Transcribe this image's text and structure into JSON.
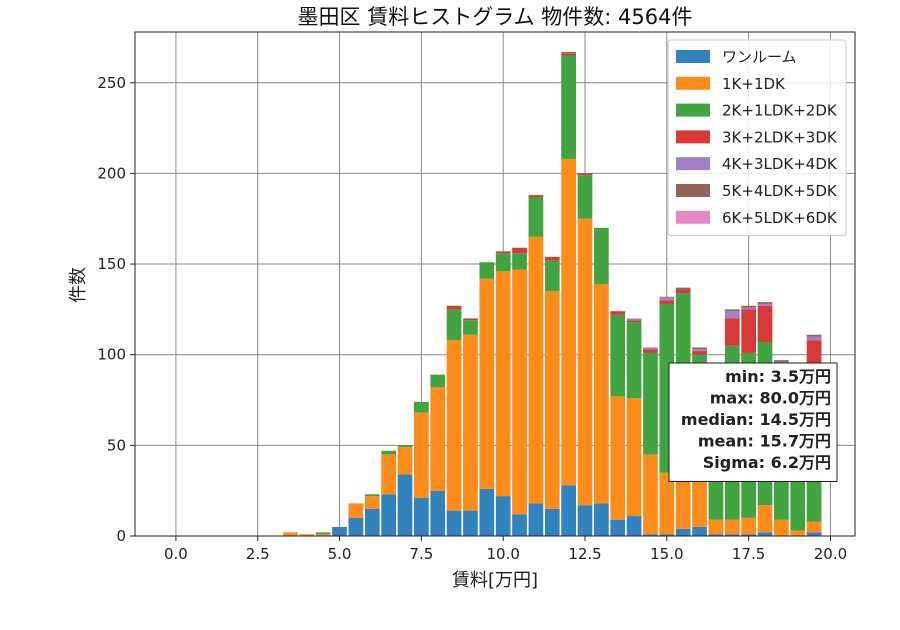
{
  "chart_data": {
    "type": "bar",
    "stacked": true,
    "title": "墨田区 賃料ヒストグラム 物件数: 4564件",
    "xlabel": "賃料[万円]",
    "ylabel": "件数",
    "xlim": [
      -1.25,
      20.75
    ],
    "ylim": [
      0,
      278
    ],
    "xticks": [
      0,
      2.5,
      5,
      7.5,
      10,
      12.5,
      15,
      17.5,
      20
    ],
    "xtick_labels": [
      "0.0",
      "2.5",
      "5.0",
      "7.5",
      "10.0",
      "12.5",
      "15.0",
      "17.5",
      "20.0"
    ],
    "yticks": [
      0,
      50,
      100,
      150,
      200,
      250
    ],
    "ytick_labels": [
      "0",
      "50",
      "100",
      "150",
      "200",
      "250"
    ],
    "grid": true,
    "legend_position": "top-right",
    "bin_width": 0.5,
    "x": [
      3.5,
      4.0,
      4.5,
      5.0,
      5.5,
      6.0,
      6.5,
      7.0,
      7.5,
      8.0,
      8.5,
      9.0,
      9.5,
      10.0,
      10.5,
      11.0,
      11.5,
      12.0,
      12.5,
      13.0,
      13.5,
      14.0,
      14.5,
      15.0,
      15.5,
      16.0,
      16.5,
      17.0,
      17.5,
      18.0,
      18.5,
      19.0,
      19.5
    ],
    "series": [
      {
        "name": "ワンルーム",
        "color": "#3182bd",
        "values": [
          0,
          0,
          0,
          5,
          10,
          15,
          23,
          34,
          21,
          25,
          14,
          14,
          26,
          22,
          12,
          18,
          15,
          28,
          17,
          18,
          9,
          11,
          1,
          1,
          4,
          5,
          1,
          1,
          1,
          2,
          0,
          0,
          2
        ]
      },
      {
        "name": "1K+1DK",
        "color": "#ff8c1a",
        "values": [
          2,
          1,
          1,
          0,
          8,
          7,
          22,
          15,
          47,
          57,
          94,
          97,
          116,
          124,
          135,
          147,
          120,
          180,
          158,
          121,
          68,
          65,
          44,
          34,
          30,
          25,
          8,
          8,
          9,
          15,
          9,
          3,
          6
        ]
      },
      {
        "name": "2K+1LDK+2DK",
        "color": "#41a441",
        "values": [
          0,
          0,
          1,
          0,
          0,
          1,
          2,
          1,
          6,
          7,
          17,
          8,
          9,
          10,
          9,
          22,
          17,
          57,
          24,
          31,
          45,
          42,
          56,
          93,
          100,
          70,
          78,
          96,
          91,
          90,
          80,
          78,
          80
        ]
      },
      {
        "name": "3K+2LDK+3DK",
        "color": "#d63a3a",
        "values": [
          0,
          0,
          0,
          0,
          0,
          0,
          0,
          0,
          0,
          0,
          2,
          1,
          0,
          1,
          3,
          1,
          2,
          1,
          1,
          0,
          2,
          1,
          2,
          2,
          2,
          2,
          3,
          15,
          24,
          20,
          6,
          9,
          20
        ]
      },
      {
        "name": "4K+3LDK+4DK",
        "color": "#a47fc6",
        "values": [
          0,
          0,
          0,
          0,
          0,
          0,
          0,
          0,
          0,
          0,
          0,
          0,
          0,
          0,
          0,
          0,
          0,
          0,
          0,
          0,
          0,
          1,
          1,
          2,
          0,
          1,
          1,
          4,
          1,
          1,
          1,
          1,
          2
        ]
      },
      {
        "name": "5K+4LDK+5DK",
        "color": "#946459",
        "values": [
          0,
          0,
          0,
          0,
          0,
          0,
          0,
          0,
          0,
          0,
          0,
          0,
          0,
          0,
          0,
          0,
          0,
          1,
          0,
          0,
          0,
          0,
          0,
          0,
          1,
          1,
          0,
          1,
          1,
          1,
          1,
          0,
          1
        ]
      },
      {
        "name": "6K+5LDK+6DK",
        "color": "#e488c9",
        "values": [
          0,
          0,
          0,
          0,
          0,
          0,
          0,
          0,
          0,
          0,
          0,
          0,
          0,
          0,
          0,
          0,
          0,
          0,
          0,
          0,
          0,
          0,
          0,
          0,
          0,
          0,
          0,
          0,
          0,
          0,
          0,
          0,
          0
        ]
      }
    ],
    "annotations": {
      "stats": [
        "min: 3.5万円",
        "max: 80.0万円",
        "median: 14.5万円",
        "mean: 15.7万円",
        "Sigma: 6.2万円"
      ]
    }
  }
}
